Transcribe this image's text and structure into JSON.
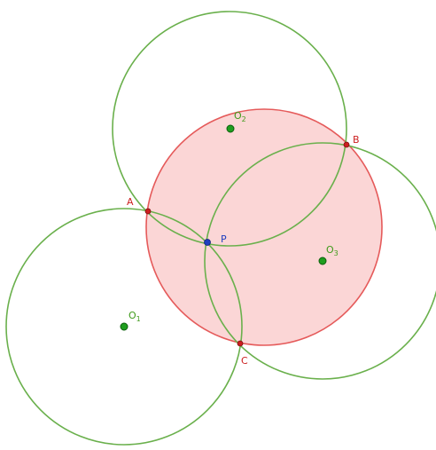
{
  "labels": {
    "A": "A",
    "B": "B",
    "C": "C",
    "P": "P",
    "O1": "O",
    "O1_sub": "1",
    "O2": "O",
    "O2_sub": "2",
    "O3": "O",
    "O3_sub": "3"
  },
  "colors": {
    "circumcircle_stroke": "#e55a5a",
    "circumcircle_fill": "#fbd6d6",
    "green_circle_stroke": "#6ab04c",
    "center_point": "#1e9e1e",
    "vertex_point": "#cc1f1f",
    "p_point": "#1f3fbf"
  }
}
